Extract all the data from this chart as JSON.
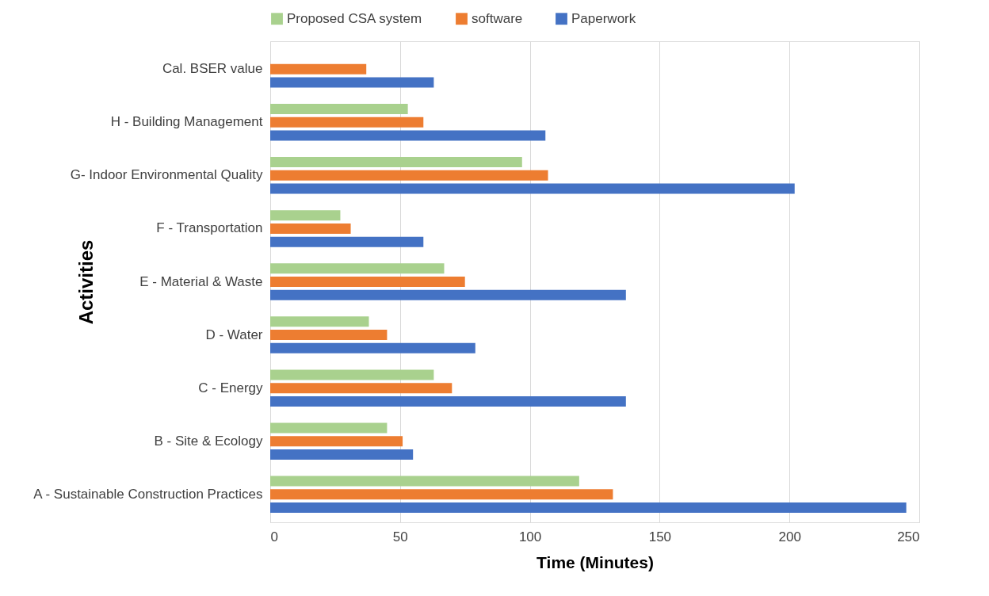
{
  "chart_data": {
    "type": "bar",
    "orientation": "horizontal",
    "xlabel": "Time (Minutes)",
    "ylabel": "Activities",
    "categories": [
      "Cal. BSER value",
      "H - Building Management",
      "G- Indoor Environmental Quality",
      "F - Transportation",
      "E - Material & Waste",
      "D - Water",
      "C - Energy",
      "B - Site & Ecology",
      "A - Sustainable Construction Practices"
    ],
    "series": [
      {
        "name": "Proposed CSA system",
        "color": "#a9d18e",
        "values": [
          null,
          53,
          97,
          27,
          67,
          38,
          63,
          45,
          119
        ]
      },
      {
        "name": "software",
        "color": "#ed7d31",
        "values": [
          37,
          59,
          107,
          31,
          75,
          45,
          70,
          51,
          132
        ]
      },
      {
        "name": "Paperwork",
        "color": "#4472c4",
        "values": [
          63,
          106,
          202,
          59,
          137,
          79,
          137,
          55,
          245
        ]
      }
    ],
    "xlim": [
      0,
      250
    ],
    "xticks": [
      0,
      50,
      100,
      150,
      200,
      250
    ],
    "grid": "x",
    "legend": "top"
  }
}
